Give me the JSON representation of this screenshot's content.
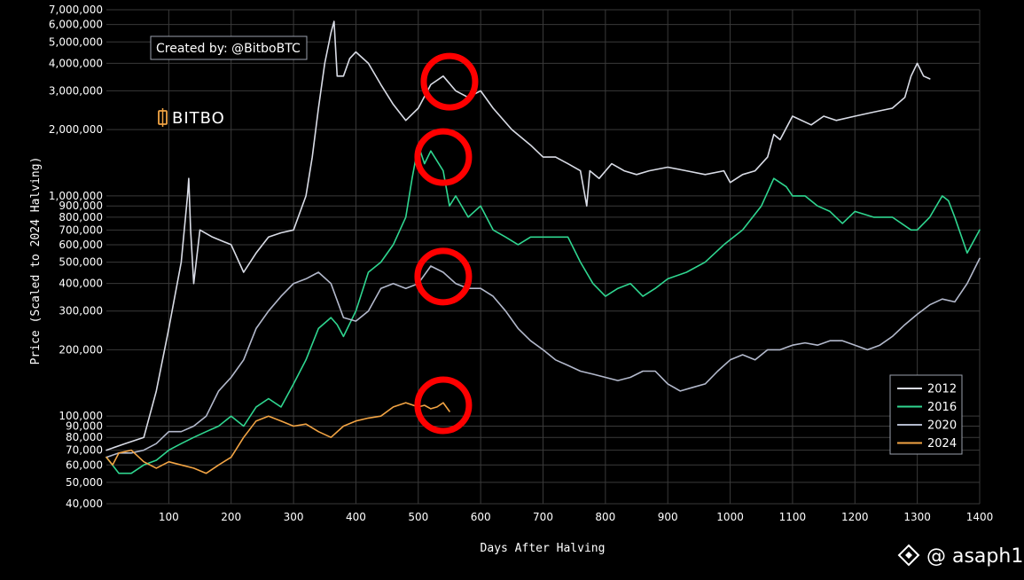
{
  "chart_data": {
    "type": "line",
    "xlabel": "Days After Halving",
    "ylabel": "Price (Scaled to 2024 Halving)",
    "yscale": "log",
    "xlim": [
      0,
      1400
    ],
    "ylim": [
      40000,
      7000000
    ],
    "grid": true,
    "x_ticks": [
      100,
      200,
      300,
      400,
      500,
      600,
      700,
      800,
      900,
      1000,
      1100,
      1200,
      1300,
      1400
    ],
    "y_ticks": [
      40000,
      50000,
      60000,
      70000,
      80000,
      90000,
      100000,
      200000,
      300000,
      400000,
      500000,
      600000,
      700000,
      800000,
      900000,
      1000000,
      2000000,
      3000000,
      4000000,
      5000000,
      6000000,
      7000000
    ],
    "y_tick_labels": [
      "40,000",
      "50,000",
      "60,000",
      "70,000",
      "80,000",
      "90,000",
      "100,000",
      "200,000",
      "300,000",
      "400,000",
      "500,000",
      "600,000",
      "700,000",
      "800,000",
      "900,000",
      "1,000,000",
      "2,000,000",
      "3,000,000",
      "4,000,000",
      "5,000,000",
      "6,000,000",
      "7,000,000"
    ],
    "legend_position": "bottom-right",
    "series": [
      {
        "name": "2012",
        "color": "#d9dce6",
        "x": [
          0,
          30,
          60,
          80,
          100,
          120,
          130,
          132,
          135,
          140,
          150,
          170,
          200,
          220,
          240,
          260,
          280,
          300,
          320,
          330,
          340,
          350,
          360,
          365,
          370,
          380,
          390,
          400,
          420,
          440,
          460,
          480,
          500,
          520,
          540,
          560,
          580,
          600,
          620,
          650,
          680,
          700,
          720,
          740,
          760,
          770,
          775,
          790,
          810,
          830,
          850,
          870,
          900,
          930,
          960,
          990,
          1000,
          1020,
          1040,
          1060,
          1070,
          1080,
          1100,
          1130,
          1150,
          1170,
          1200,
          1230,
          1260,
          1280,
          1290,
          1300,
          1310,
          1320
        ],
        "y": [
          70000,
          75000,
          80000,
          130000,
          250000,
          500000,
          1000000,
          1200000,
          700000,
          400000,
          700000,
          650000,
          600000,
          450000,
          550000,
          650000,
          680000,
          700000,
          1000000,
          1500000,
          2500000,
          4000000,
          5500000,
          6200000,
          3500000,
          3500000,
          4200000,
          4500000,
          4000000,
          3200000,
          2600000,
          2200000,
          2500000,
          3200000,
          3500000,
          3000000,
          2800000,
          3000000,
          2500000,
          2000000,
          1700000,
          1500000,
          1500000,
          1400000,
          1300000,
          900000,
          1300000,
          1200000,
          1400000,
          1300000,
          1250000,
          1300000,
          1350000,
          1300000,
          1250000,
          1300000,
          1150000,
          1250000,
          1300000,
          1500000,
          1900000,
          1800000,
          2300000,
          2100000,
          2300000,
          2200000,
          2300000,
          2400000,
          2500000,
          2800000,
          3500000,
          4000000,
          3500000,
          3400000
        ]
      },
      {
        "name": "2016",
        "color": "#2fd690",
        "x": [
          0,
          20,
          40,
          60,
          80,
          100,
          120,
          140,
          160,
          180,
          200,
          220,
          240,
          260,
          280,
          300,
          320,
          340,
          360,
          370,
          380,
          400,
          420,
          440,
          460,
          480,
          490,
          500,
          510,
          520,
          540,
          550,
          560,
          580,
          600,
          620,
          640,
          660,
          680,
          700,
          720,
          740,
          760,
          780,
          800,
          820,
          840,
          860,
          880,
          900,
          930,
          960,
          990,
          1020,
          1050,
          1070,
          1090,
          1100,
          1120,
          1140,
          1160,
          1180,
          1200,
          1230,
          1260,
          1290,
          1300,
          1320,
          1340,
          1350,
          1360,
          1380,
          1400
        ],
        "y": [
          65000,
          55000,
          55000,
          60000,
          63000,
          70000,
          75000,
          80000,
          85000,
          90000,
          100000,
          90000,
          110000,
          120000,
          110000,
          140000,
          180000,
          250000,
          280000,
          260000,
          230000,
          300000,
          450000,
          500000,
          600000,
          800000,
          1200000,
          1700000,
          1400000,
          1600000,
          1300000,
          900000,
          1000000,
          800000,
          900000,
          700000,
          650000,
          600000,
          650000,
          650000,
          650000,
          650000,
          500000,
          400000,
          350000,
          380000,
          400000,
          350000,
          380000,
          420000,
          450000,
          500000,
          600000,
          700000,
          900000,
          1200000,
          1100000,
          1000000,
          1000000,
          900000,
          850000,
          750000,
          850000,
          800000,
          800000,
          700000,
          700000,
          800000,
          1000000,
          950000,
          800000,
          550000,
          700000
        ]
      },
      {
        "name": "2020",
        "color": "#b3b9cc",
        "x": [
          0,
          20,
          40,
          60,
          80,
          100,
          120,
          140,
          160,
          180,
          200,
          220,
          240,
          260,
          280,
          300,
          320,
          340,
          360,
          380,
          400,
          420,
          440,
          460,
          480,
          500,
          520,
          540,
          560,
          580,
          600,
          620,
          640,
          660,
          680,
          700,
          720,
          740,
          760,
          780,
          800,
          820,
          840,
          860,
          880,
          900,
          920,
          940,
          960,
          980,
          1000,
          1020,
          1040,
          1060,
          1080,
          1100,
          1120,
          1140,
          1160,
          1180,
          1200,
          1220,
          1240,
          1260,
          1280,
          1300,
          1320,
          1340,
          1360,
          1380,
          1400
        ],
        "y": [
          65000,
          68000,
          68000,
          70000,
          75000,
          85000,
          85000,
          90000,
          100000,
          130000,
          150000,
          180000,
          250000,
          300000,
          350000,
          400000,
          420000,
          450000,
          400000,
          280000,
          270000,
          300000,
          380000,
          400000,
          380000,
          400000,
          480000,
          450000,
          400000,
          380000,
          380000,
          350000,
          300000,
          250000,
          220000,
          200000,
          180000,
          170000,
          160000,
          155000,
          150000,
          145000,
          150000,
          160000,
          160000,
          140000,
          130000,
          135000,
          140000,
          160000,
          180000,
          190000,
          180000,
          200000,
          200000,
          210000,
          215000,
          210000,
          220000,
          220000,
          210000,
          200000,
          210000,
          230000,
          260000,
          290000,
          320000,
          340000,
          330000,
          400000,
          520000
        ]
      },
      {
        "name": "2024",
        "color": "#f2a444",
        "x": [
          0,
          10,
          20,
          40,
          60,
          80,
          100,
          120,
          140,
          160,
          180,
          200,
          220,
          240,
          260,
          280,
          300,
          320,
          340,
          360,
          380,
          400,
          420,
          440,
          460,
          480,
          500,
          510,
          520,
          530,
          540,
          550
        ],
        "y": [
          65000,
          60000,
          68000,
          70000,
          62000,
          58000,
          62000,
          60000,
          58000,
          55000,
          60000,
          65000,
          80000,
          95000,
          100000,
          95000,
          90000,
          92000,
          85000,
          80000,
          90000,
          95000,
          98000,
          100000,
          110000,
          115000,
          110000,
          112000,
          108000,
          110000,
          115000,
          105000
        ]
      }
    ],
    "annotations": [
      {
        "type": "circle",
        "x": 550,
        "y": 3300000,
        "color": "#ff0000"
      },
      {
        "type": "circle",
        "x": 540,
        "y": 1500000,
        "color": "#ff0000"
      },
      {
        "type": "circle",
        "x": 540,
        "y": 430000,
        "color": "#ff0000"
      },
      {
        "type": "circle",
        "x": 540,
        "y": 112000,
        "color": "#ff0000"
      }
    ]
  },
  "credit_box": {
    "text": "Created by: @BitboBTC"
  },
  "brand_logo": {
    "text": "BITBO",
    "color": "#f2a444"
  },
  "watermark": {
    "text": "@ asaph1"
  }
}
